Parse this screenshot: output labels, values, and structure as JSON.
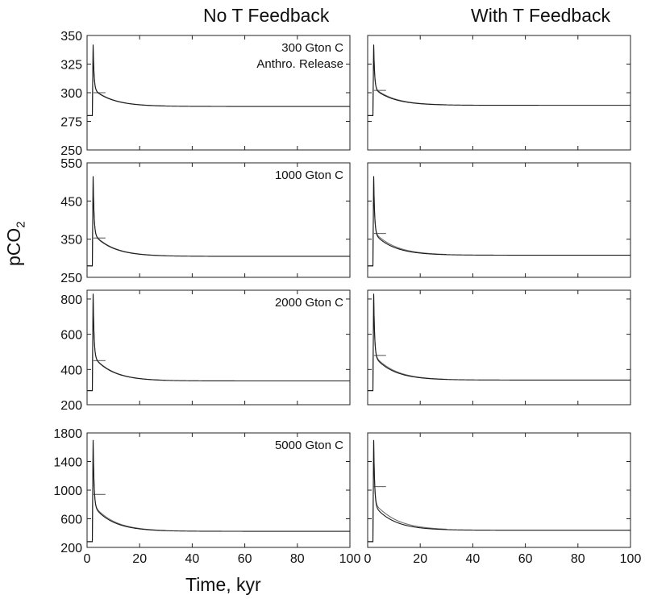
{
  "figure": {
    "col_titles": [
      "No T Feedback",
      "With T Feedback"
    ],
    "xlabel": "Time, kyr",
    "ylabel_main": "pCO",
    "ylabel_sub": "2"
  },
  "colors": {
    "axis": "#222222",
    "line_dark": "#1a1a1a",
    "line_gray": "#6e6e6e"
  },
  "chart_data": [
    {
      "type": "line",
      "row": 0,
      "col": 0,
      "annotation": [
        "300 Gton C",
        "Anthro. Release"
      ],
      "xlim": [
        0,
        100
      ],
      "ylim": [
        250,
        350
      ],
      "yticks": [
        250,
        275,
        300,
        325,
        350
      ],
      "xticks": [
        0,
        20,
        40,
        60,
        80,
        100
      ],
      "baseline": 280,
      "peak": 342,
      "step_level": 300,
      "step_end": 7,
      "tail": 288,
      "gray_shift": 0.5
    },
    {
      "type": "line",
      "row": 0,
      "col": 1,
      "annotation": [],
      "xlim": [
        0,
        100
      ],
      "ylim": [
        250,
        350
      ],
      "yticks": [
        250,
        275,
        300,
        325,
        350
      ],
      "xticks": [
        0,
        20,
        40,
        60,
        80,
        100
      ],
      "baseline": 280,
      "peak": 342,
      "step_level": 302,
      "step_end": 7,
      "tail": 289,
      "gray_shift": 1.0
    },
    {
      "type": "line",
      "row": 1,
      "col": 0,
      "annotation": [
        "1000 Gton C"
      ],
      "xlim": [
        0,
        100
      ],
      "ylim": [
        250,
        550
      ],
      "yticks": [
        250,
        350,
        450,
        550
      ],
      "xticks": [
        0,
        20,
        40,
        60,
        80,
        100
      ],
      "baseline": 280,
      "peak": 515,
      "step_level": 353,
      "step_end": 7,
      "tail": 305,
      "gray_shift": 2
    },
    {
      "type": "line",
      "row": 1,
      "col": 1,
      "annotation": [],
      "xlim": [
        0,
        100
      ],
      "ylim": [
        250,
        550
      ],
      "yticks": [
        250,
        350,
        450,
        550
      ],
      "xticks": [
        0,
        20,
        40,
        60,
        80,
        100
      ],
      "baseline": 280,
      "peak": 515,
      "step_level": 365,
      "step_end": 7,
      "tail": 308,
      "gray_shift": 6
    },
    {
      "type": "line",
      "row": 2,
      "col": 0,
      "annotation": [
        "2000 Gton C"
      ],
      "xlim": [
        0,
        100
      ],
      "ylim": [
        200,
        850
      ],
      "yticks": [
        200,
        400,
        600,
        800
      ],
      "xticks": [
        0,
        20,
        40,
        60,
        80,
        100
      ],
      "baseline": 280,
      "peak": 830,
      "step_level": 450,
      "step_end": 7,
      "tail": 335,
      "gray_shift": 4
    },
    {
      "type": "line",
      "row": 2,
      "col": 1,
      "annotation": [],
      "xlim": [
        0,
        100
      ],
      "ylim": [
        200,
        850
      ],
      "yticks": [
        200,
        400,
        600,
        800
      ],
      "xticks": [
        0,
        20,
        40,
        60,
        80,
        100
      ],
      "baseline": 280,
      "peak": 830,
      "step_level": 480,
      "step_end": 7,
      "tail": 340,
      "gray_shift": 10
    },
    {
      "type": "line",
      "row": 3,
      "col": 0,
      "annotation": [
        "5000 Gton C"
      ],
      "xlim": [
        0,
        100
      ],
      "ylim": [
        200,
        1800
      ],
      "yticks": [
        200,
        600,
        1000,
        1400,
        1800
      ],
      "xticks": [
        0,
        20,
        40,
        60,
        80,
        100
      ],
      "baseline": 280,
      "peak": 1700,
      "step_level": 940,
      "step_end": 7,
      "tail": 425,
      "gray_shift": 25
    },
    {
      "type": "line",
      "row": 3,
      "col": 1,
      "annotation": [],
      "xlim": [
        0,
        100
      ],
      "ylim": [
        200,
        1800
      ],
      "yticks": [
        200,
        600,
        1000,
        1400,
        1800
      ],
      "xticks": [
        0,
        20,
        40,
        60,
        80,
        100
      ],
      "baseline": 280,
      "peak": 1700,
      "step_level": 1050,
      "step_end": 7,
      "tail": 440,
      "gray_shift": 60
    }
  ]
}
